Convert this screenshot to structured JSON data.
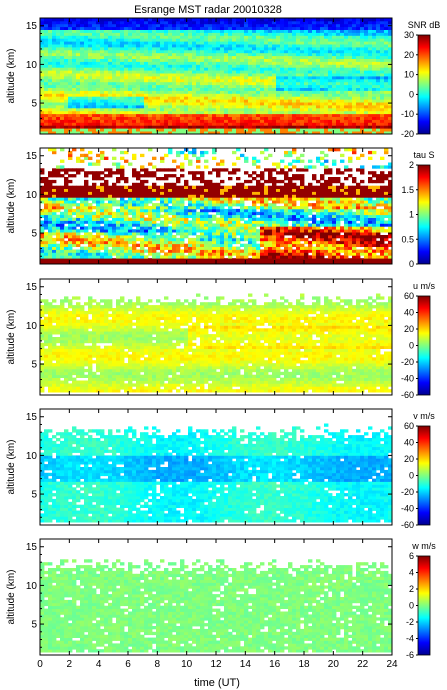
{
  "figure": {
    "title": "Esrange MST radar 20010328",
    "xlabel": "time (UT)",
    "ylabel": "altitude (km)"
  },
  "chart_data": [
    {
      "type": "heatmap",
      "title": "Esrange MST radar 20010328",
      "xlabel": "",
      "ylabel": "altitude (km)",
      "xlim": [
        0,
        24
      ],
      "ylim": [
        1,
        16
      ],
      "yticks": [
        5,
        10,
        15
      ],
      "colorbar": {
        "label": "SNR dB",
        "ticks": [
          -20,
          -10,
          0,
          10,
          20,
          30
        ],
        "range": [
          -20,
          30
        ],
        "colormap": "jet"
      }
    },
    {
      "type": "heatmap",
      "xlabel": "",
      "ylabel": "altitude (km)",
      "xlim": [
        0,
        24
      ],
      "ylim": [
        1,
        16
      ],
      "yticks": [
        5,
        10,
        15
      ],
      "colorbar": {
        "label": "tau S",
        "ticks": [
          0,
          0.5,
          1,
          1.5,
          2
        ],
        "range": [
          0,
          2
        ],
        "colormap": "jet"
      }
    },
    {
      "type": "heatmap",
      "xlabel": "",
      "ylabel": "altitude (km)",
      "xlim": [
        0,
        24
      ],
      "ylim": [
        1,
        16
      ],
      "yticks": [
        5,
        10,
        15
      ],
      "colorbar": {
        "label": "u m/s",
        "ticks": [
          -60,
          -40,
          -20,
          0,
          20,
          40,
          60
        ],
        "range": [
          -60,
          60
        ],
        "colormap": "jet"
      }
    },
    {
      "type": "heatmap",
      "xlabel": "",
      "ylabel": "altitude (km)",
      "xlim": [
        0,
        24
      ],
      "ylim": [
        1,
        16
      ],
      "yticks": [
        5,
        10,
        15
      ],
      "colorbar": {
        "label": "v m/s",
        "ticks": [
          -60,
          -40,
          -20,
          0,
          20,
          40,
          60
        ],
        "range": [
          -60,
          60
        ],
        "colormap": "jet"
      }
    },
    {
      "type": "heatmap",
      "xlabel": "time (UT)",
      "ylabel": "altitude (km)",
      "xlim": [
        0,
        24
      ],
      "ylim": [
        1,
        16
      ],
      "xticks": [
        0,
        2,
        4,
        6,
        8,
        10,
        12,
        14,
        16,
        18,
        20,
        22,
        24
      ],
      "yticks": [
        5,
        10,
        15
      ],
      "colorbar": {
        "label": "w m/s",
        "ticks": [
          -6,
          -4,
          -2,
          0,
          2,
          4,
          6
        ],
        "range": [
          -6,
          6
        ],
        "colormap": "jet"
      }
    }
  ]
}
